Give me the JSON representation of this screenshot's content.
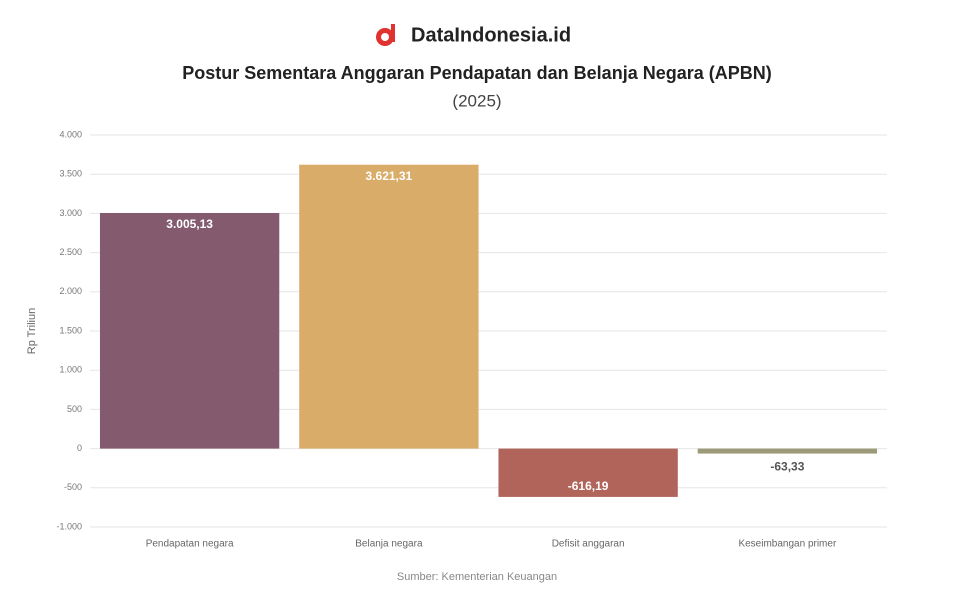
{
  "brand": "DataIndonesia.id",
  "chart_data": {
    "type": "bar",
    "title": "Postur Sementara Anggaran Pendapatan dan Belanja Negara (APBN)",
    "subtitle": "(2025)",
    "y_label": "Rp Triliun",
    "source": "Sumber: Kementerian Keuangan",
    "categories": [
      "Pendapatan negara",
      "Belanja negara",
      "Defisit anggaran",
      "Keseimbangan primer"
    ],
    "values": [
      3005.13,
      3621.31,
      -616.19,
      -63.33
    ],
    "value_labels": [
      "3.005,13",
      "3.621,31",
      "-616,19",
      "-63,33"
    ],
    "colors": [
      "#845a6e",
      "#d9ac69",
      "#b0645a",
      "#9c9a78"
    ],
    "ylim": [
      -1000,
      4000
    ],
    "yticks": [
      {
        "value": -1000,
        "label": "-1.000"
      },
      -500,
      0,
      500,
      {
        "value": 1000,
        "label": "1.000"
      },
      {
        "value": 1500,
        "label": "1.500"
      },
      {
        "value": 2000,
        "label": "2.000"
      },
      {
        "value": 2500,
        "label": "2.500"
      },
      {
        "value": 3000,
        "label": "3.000"
      },
      {
        "value": 3500,
        "label": "3.500"
      },
      {
        "value": 4000,
        "label": "4.000"
      }
    ],
    "grid": true
  }
}
